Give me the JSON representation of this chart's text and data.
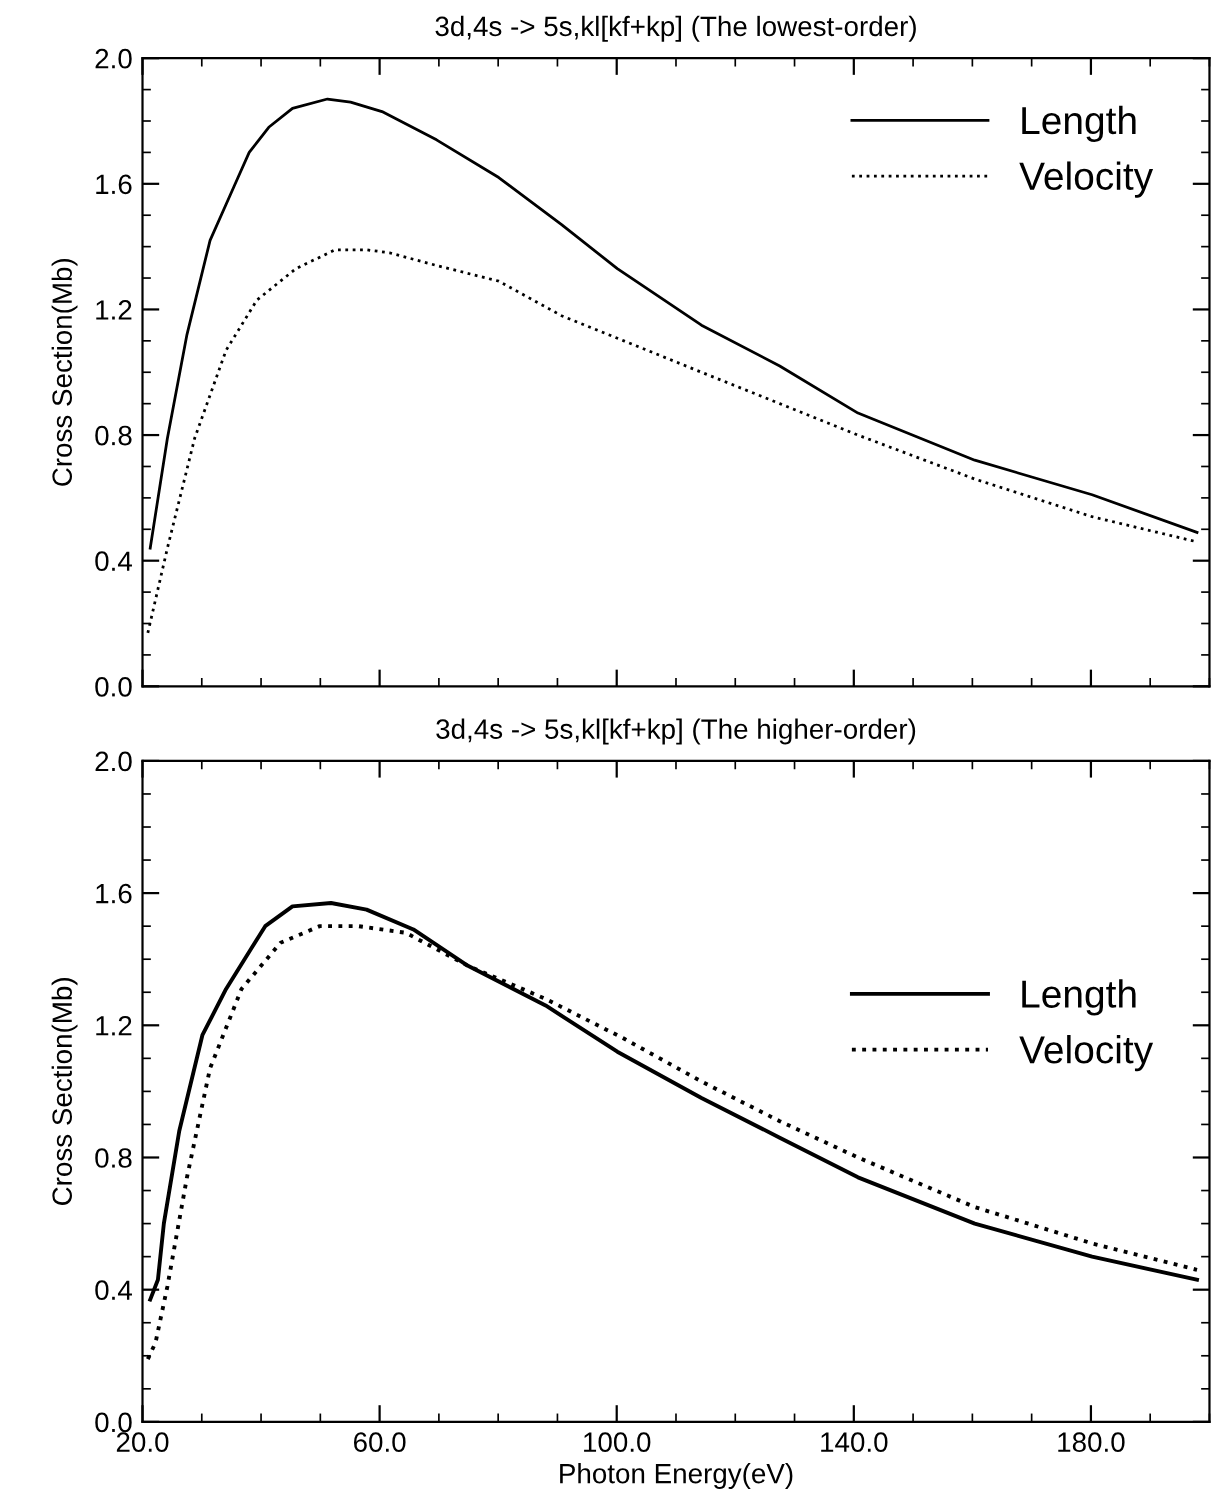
{
  "chart_data": [
    {
      "type": "line",
      "title": "3d,4s -> 5s,kl[kf+kp] (The lowest-order)",
      "ylabel": "Cross Section(Mb)",
      "xlim": [
        20,
        200
      ],
      "xticks": [
        20,
        60,
        100,
        140,
        180
      ],
      "ylim": [
        0,
        2
      ],
      "yticks": [
        {
          "value": 0,
          "label": "0.0"
        },
        {
          "value": 0.4,
          "label": "0.4"
        },
        {
          "value": 0.8,
          "label": "0.8"
        },
        {
          "value": 1.2,
          "label": "1.2"
        },
        {
          "value": 1.6,
          "label": "1.6"
        },
        {
          "value": 2,
          "label": "2.0"
        }
      ],
      "tick_labels": "y",
      "legend": "top right",
      "grid": false,
      "series": [
        {
          "name": "Length",
          "color": "#000000",
          "line_style": "solid",
          "x": [
            21.3,
            24.2,
            27.5,
            31.4,
            35.4,
            38,
            41.3,
            45.3,
            51.2,
            55.1,
            60.4,
            69.6,
            80.1,
            90.7,
            100.1,
            114.3,
            127.5,
            140.7,
            160.4,
            180.2,
            197.9
          ],
          "values": [
            0.44,
            0.79,
            1.12,
            1.42,
            1.59,
            1.7,
            1.78,
            1.84,
            1.87,
            1.86,
            1.83,
            1.74,
            1.62,
            1.47,
            1.33,
            1.15,
            1.02,
            0.87,
            0.72,
            0.61,
            0.49
          ]
        },
        {
          "name": "Velocity",
          "color": "#000000",
          "line_style": "dotted",
          "x": [
            20.9,
            24.2,
            28.8,
            34.1,
            39.3,
            45.9,
            52.5,
            57.8,
            61.7,
            69.6,
            80.1,
            90.7,
            101.2,
            114.3,
            127.5,
            140.7,
            160.4,
            180.2,
            197.9
          ],
          "values": [
            0.17,
            0.44,
            0.79,
            1.07,
            1.23,
            1.33,
            1.39,
            1.39,
            1.38,
            1.34,
            1.29,
            1.18,
            1.1,
            1.0,
            0.9,
            0.8,
            0.66,
            0.54,
            0.46
          ]
        }
      ]
    },
    {
      "type": "line",
      "title": "3d,4s -> 5s,kl[kf+kp] (The higher-order)",
      "xlabel": "Photon Energy(eV)",
      "ylabel": "Cross Section(Mb)",
      "xlim": [
        20,
        200
      ],
      "xticks": [
        {
          "value": 20,
          "label": "20.0"
        },
        {
          "value": 60,
          "label": "60.0"
        },
        {
          "value": 100,
          "label": "100.0"
        },
        {
          "value": 140,
          "label": "140.0"
        },
        {
          "value": 180,
          "label": "180.0"
        }
      ],
      "ylim": [
        0,
        2
      ],
      "yticks": [
        {
          "value": 0,
          "label": "0.0"
        },
        {
          "value": 0.4,
          "label": "0.4"
        },
        {
          "value": 0.8,
          "label": "0.8"
        },
        {
          "value": 1.2,
          "label": "1.2"
        },
        {
          "value": 1.6,
          "label": "1.6"
        },
        {
          "value": 2,
          "label": "2.0"
        }
      ],
      "legend": "right",
      "grid": false,
      "series": [
        {
          "name": "Length",
          "color": "#000000",
          "line_style": "solid",
          "x": [
            21.3,
            22.6,
            23.6,
            26.2,
            30.1,
            34.1,
            40.7,
            45.3,
            51.8,
            57.8,
            65.7,
            74.9,
            88.0,
            100.1,
            114.3,
            127.5,
            140.7,
            160.4,
            180.2,
            197.9
          ],
          "values": [
            0.37,
            0.43,
            0.6,
            0.88,
            1.17,
            1.31,
            1.5,
            1.56,
            1.57,
            1.55,
            1.49,
            1.38,
            1.26,
            1.12,
            0.98,
            0.86,
            0.74,
            0.6,
            0.5,
            0.43
          ]
        },
        {
          "name": "Velocity",
          "color": "#000000",
          "line_style": "dotted",
          "x": [
            20.9,
            22.2,
            24.2,
            27.5,
            31.4,
            36.7,
            43.3,
            49.9,
            56.4,
            64.4,
            74.9,
            88.0,
            101.2,
            114.3,
            127.5,
            140.7,
            160.4,
            180.2,
            197.9
          ],
          "values": [
            0.19,
            0.24,
            0.41,
            0.74,
            1.07,
            1.31,
            1.45,
            1.5,
            1.5,
            1.48,
            1.38,
            1.28,
            1.16,
            1.03,
            0.91,
            0.8,
            0.65,
            0.54,
            0.46
          ]
        }
      ]
    }
  ]
}
